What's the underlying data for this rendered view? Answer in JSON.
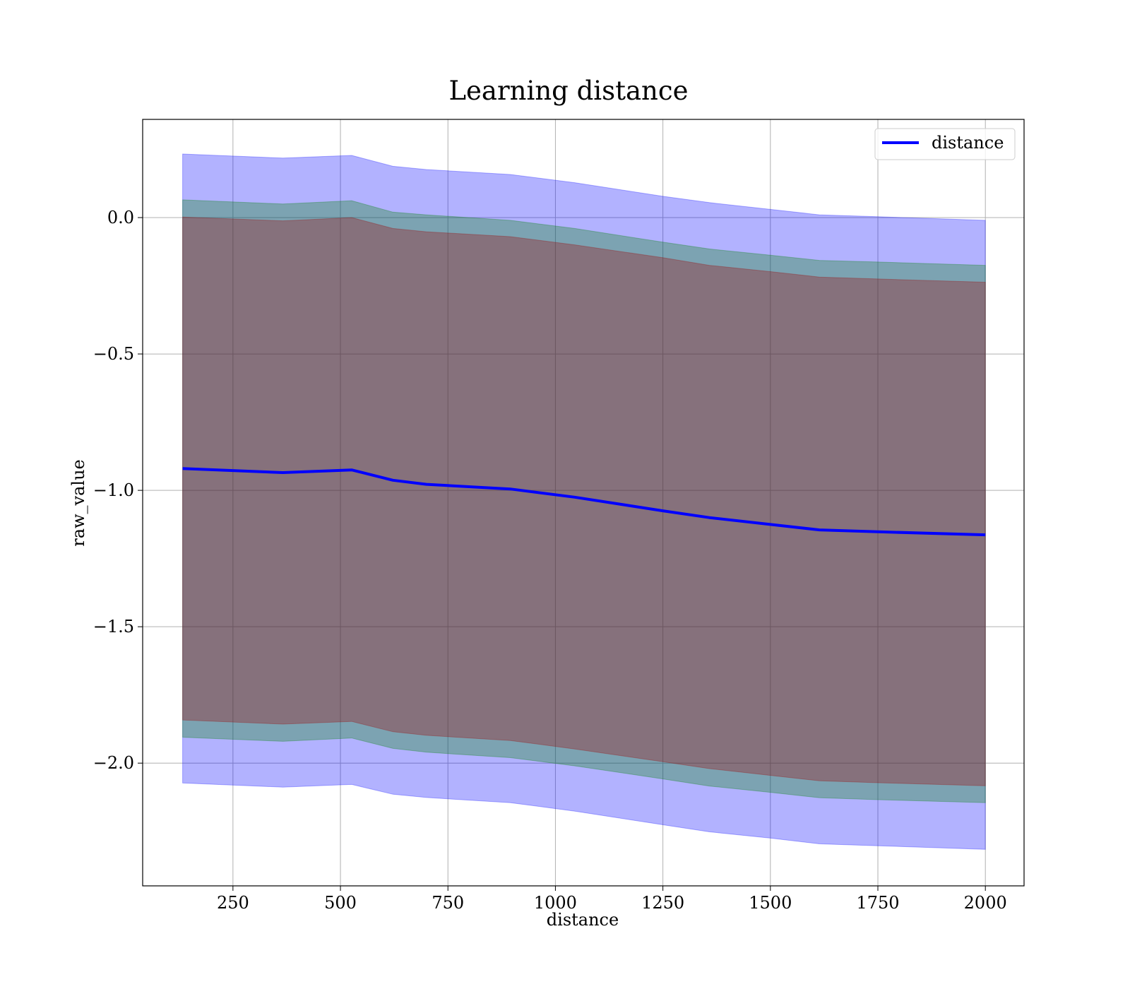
{
  "chart_data": {
    "type": "line",
    "title": "Learning distance",
    "xlabel": "distance",
    "ylabel": "raw_value",
    "xlim": [
      40,
      2090
    ],
    "ylim": [
      -2.45,
      0.36
    ],
    "x_ticks": [
      250,
      500,
      750,
      1000,
      1250,
      1500,
      1750,
      2000
    ],
    "x_tick_labels": [
      "250",
      "500",
      "750",
      "1000",
      "1250",
      "1500",
      "1750",
      "2000"
    ],
    "y_ticks": [
      0.0,
      -0.5,
      -1.0,
      -1.5,
      -2.0
    ],
    "y_tick_labels": [
      "0.0",
      "−0.5",
      "−1.0",
      "−1.5",
      "−2.0"
    ],
    "grid": true,
    "legend": {
      "position": "top-right",
      "entries": [
        "distance"
      ]
    },
    "x": [
      133,
      366,
      526,
      622,
      700,
      895,
      1045,
      1250,
      1358,
      1500,
      1614,
      1750,
      2000
    ],
    "series": [
      {
        "name": "distance",
        "color": "#0000ff",
        "values": [
          -0.92,
          -0.935,
          -0.925,
          -0.963,
          -0.978,
          -0.995,
          -1.025,
          -1.075,
          -1.1,
          -1.125,
          -1.145,
          -1.152,
          -1.163
        ]
      }
    ],
    "bands": [
      {
        "color": "#0000ff",
        "opacity": 0.3,
        "upper": [
          0.233,
          0.218,
          0.228,
          0.188,
          0.176,
          0.158,
          0.128,
          0.078,
          0.055,
          0.03,
          0.01,
          0.003,
          -0.01
        ],
        "lower": [
          -2.073,
          -2.088,
          -2.078,
          -2.114,
          -2.126,
          -2.145,
          -2.176,
          -2.226,
          -2.252,
          -2.275,
          -2.296,
          -2.303,
          -2.316
        ]
      },
      {
        "color": "#008000",
        "opacity": 0.3,
        "upper": [
          0.065,
          0.05,
          0.062,
          0.02,
          0.01,
          -0.01,
          -0.04,
          -0.09,
          -0.115,
          -0.138,
          -0.157,
          -0.163,
          -0.175
        ],
        "lower": [
          -1.905,
          -1.92,
          -1.908,
          -1.946,
          -1.96,
          -1.98,
          -2.01,
          -2.058,
          -2.084,
          -2.107,
          -2.127,
          -2.134,
          -2.145
        ]
      },
      {
        "color": "#a00000",
        "opacity": 0.3,
        "upper": [
          0.002,
          -0.012,
          0.0,
          -0.04,
          -0.052,
          -0.07,
          -0.1,
          -0.147,
          -0.175,
          -0.198,
          -0.218,
          -0.225,
          -0.237
        ],
        "lower": [
          -1.842,
          -1.857,
          -1.847,
          -1.885,
          -1.898,
          -1.917,
          -1.948,
          -1.995,
          -2.02,
          -2.045,
          -2.065,
          -2.072,
          -2.083
        ]
      }
    ]
  }
}
